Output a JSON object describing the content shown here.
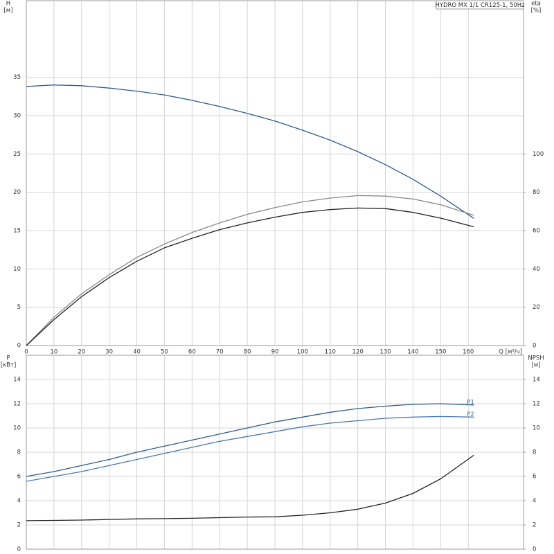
{
  "chart_data": [
    {
      "type": "line",
      "title": "HYDRO MX 1/1 CR125-1, 50Hz",
      "ylabel": "H",
      "yunit": "[м]",
      "y2label": "eta",
      "y2unit": "[%]",
      "xlabel": "Q [м³/ч]",
      "xlim": [
        0,
        180
      ],
      "xticks": [
        0,
        10,
        20,
        30,
        40,
        50,
        60,
        70,
        80,
        90,
        100,
        110,
        120,
        130,
        140,
        150,
        160
      ],
      "ylim": [
        0,
        45
      ],
      "yticks": [
        0,
        5,
        10,
        15,
        20,
        25,
        30,
        35
      ],
      "y2lim": [
        0,
        180
      ],
      "y2ticks": [
        0,
        20,
        40,
        60,
        80,
        100
      ],
      "grid": true,
      "x": [
        0,
        10,
        20,
        30,
        40,
        50,
        60,
        70,
        80,
        90,
        100,
        110,
        120,
        130,
        140,
        150,
        162
      ],
      "series": [
        {
          "color": "#2f5b8f",
          "values": [
            33.8,
            34,
            33.9,
            33.6,
            33.2,
            32.7,
            32,
            31.2,
            30.3,
            29.3,
            28.1,
            26.8,
            25.3,
            23.6,
            21.7,
            19.5,
            16.6
          ]
        },
        {
          "color": "#888888",
          "axis": "y2",
          "values": [
            0,
            14.8,
            27,
            37,
            46,
            53,
            59,
            64,
            68.5,
            72,
            75,
            77,
            78.3,
            78,
            76.5,
            73.5,
            68
          ]
        },
        {
          "color": "#222222",
          "axis": "y2",
          "values": [
            0,
            13.5,
            25.5,
            35.5,
            44,
            51,
            56,
            60.5,
            64,
            67,
            69.5,
            71,
            71.8,
            71.5,
            69.5,
            66.5,
            62
          ]
        }
      ]
    },
    {
      "type": "line",
      "ylabel": "P",
      "yunit": "[кВт]",
      "y2label": "NPSH",
      "y2unit": "[м]",
      "xlim": [
        0,
        180
      ],
      "ylim": [
        0,
        16
      ],
      "yticks": [
        0,
        2,
        4,
        6,
        8,
        10,
        12,
        14
      ],
      "y2lim": [
        0,
        16
      ],
      "y2ticks": [
        0,
        2,
        4,
        6,
        8,
        10,
        12,
        14
      ],
      "grid": true,
      "x": [
        0,
        10,
        20,
        30,
        40,
        50,
        60,
        70,
        80,
        90,
        100,
        110,
        120,
        130,
        140,
        150,
        162
      ],
      "series": [
        {
          "name": "P1",
          "color": "#2f5b8f",
          "values": [
            6.0,
            6.4,
            6.9,
            7.4,
            8.0,
            8.5,
            9.0,
            9.5,
            10.0,
            10.5,
            10.9,
            11.3,
            11.6,
            11.8,
            11.95,
            12.0,
            11.9
          ]
        },
        {
          "name": "P2",
          "color": "#4a78b0",
          "values": [
            5.6,
            6.0,
            6.4,
            6.9,
            7.4,
            7.9,
            8.4,
            8.9,
            9.3,
            9.7,
            10.1,
            10.4,
            10.6,
            10.8,
            10.9,
            10.95,
            10.9
          ]
        },
        {
          "color": "#222222",
          "axis": "y2",
          "values": [
            2.35,
            2.37,
            2.4,
            2.45,
            2.5,
            2.52,
            2.55,
            2.6,
            2.65,
            2.67,
            2.8,
            3.0,
            3.3,
            3.8,
            4.6,
            5.8,
            7.75
          ]
        }
      ]
    }
  ]
}
